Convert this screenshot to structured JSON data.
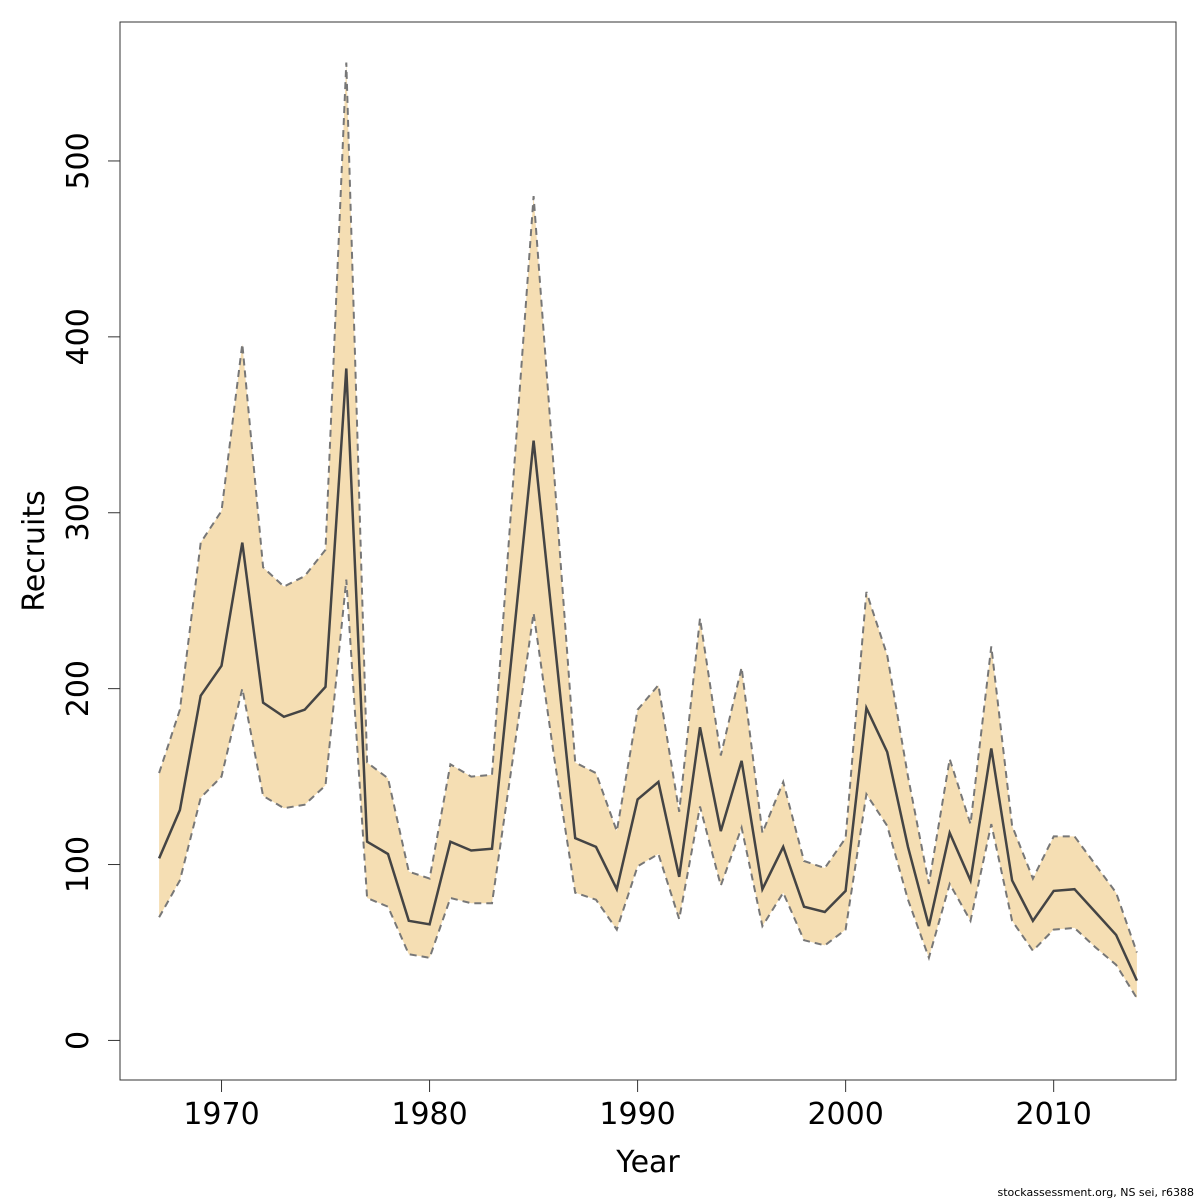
{
  "chart_data": {
    "type": "line",
    "x_label": "Year",
    "y_label": "Recruits",
    "footnote": "stockassessment.org, NS sei, r6388",
    "x": [
      1967,
      1968,
      1969,
      1970,
      1971,
      1972,
      1973,
      1974,
      1975,
      1976,
      1977,
      1978,
      1979,
      1980,
      1981,
      1982,
      1983,
      1984,
      1985,
      1986,
      1987,
      1988,
      1989,
      1990,
      1991,
      1992,
      1993,
      1994,
      1995,
      1996,
      1997,
      1998,
      1999,
      2000,
      2001,
      2002,
      2003,
      2004,
      2005,
      2006,
      2007,
      2008,
      2009,
      2010,
      2011,
      2012,
      2013,
      2014
    ],
    "values": [
      103.5,
      131,
      196,
      213,
      283,
      192,
      184,
      188,
      201,
      382,
      113,
      106,
      68,
      66,
      113,
      108,
      109,
      225,
      341,
      228,
      115,
      110,
      86,
      137,
      147,
      93,
      178,
      119,
      159,
      86,
      110,
      76,
      73,
      85,
      189,
      164,
      110,
      65,
      118,
      91,
      166,
      91,
      68,
      85,
      86,
      73,
      60,
      34
    ],
    "lower": [
      70,
      91,
      138,
      150,
      200,
      139,
      132,
      134,
      145,
      262,
      81,
      76,
      49,
      47,
      81,
      78,
      78,
      160,
      243,
      160,
      84,
      80,
      63,
      99,
      106,
      69,
      133,
      88,
      121,
      65,
      84,
      57,
      54,
      63,
      140,
      122,
      80,
      47,
      89,
      68,
      123,
      68,
      51,
      63,
      64,
      53,
      43,
      24
    ],
    "upper": [
      152,
      188,
      283,
      301,
      396,
      269,
      258,
      264,
      279,
      556,
      158,
      149,
      96,
      92,
      157,
      150,
      151,
      315,
      480,
      320,
      158,
      152,
      119,
      188,
      202,
      130,
      240,
      162,
      212,
      118,
      147,
      102,
      98,
      115,
      255,
      219,
      150,
      89,
      160,
      123,
      224,
      122,
      92,
      116,
      116,
      100,
      84,
      50
    ],
    "line_color": "#444444",
    "band_color": "#f5deb3",
    "bound_color": "#777777",
    "xlim": [
      1965.12,
      2015.88
    ],
    "ylim": [
      -22.5,
      579
    ],
    "xticks": [
      1970,
      1980,
      1990,
      2000,
      2010
    ],
    "yticks": [
      0,
      100,
      200,
      300,
      400,
      500
    ]
  }
}
